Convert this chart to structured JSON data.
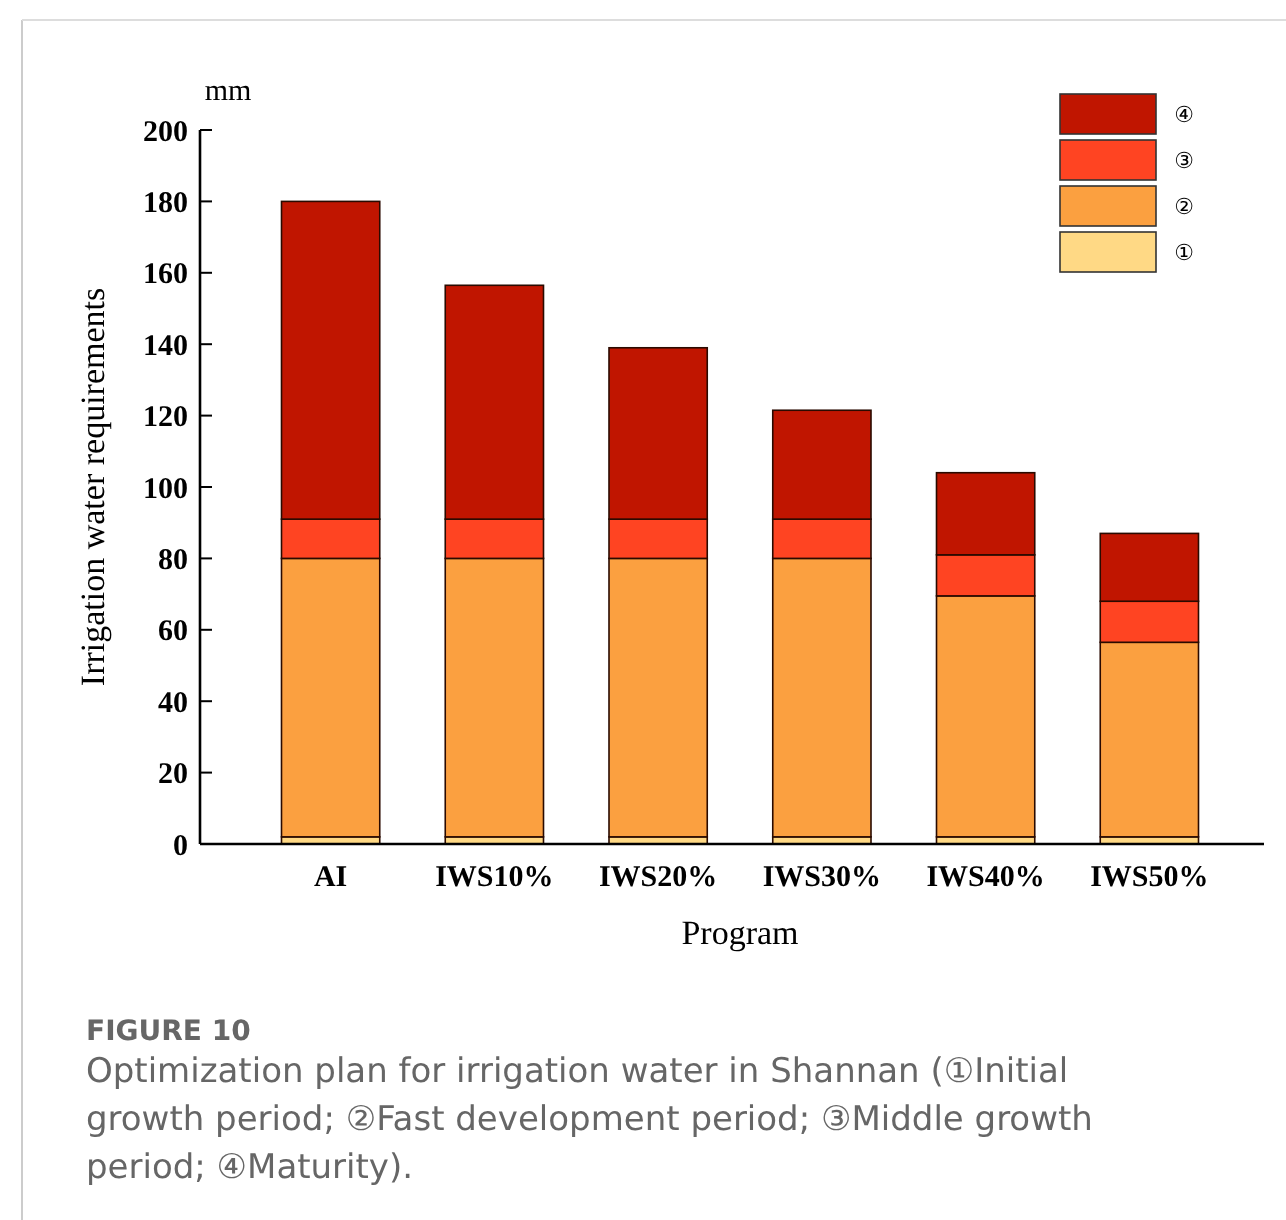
{
  "chart_data": {
    "type": "bar",
    "stacked": true,
    "title": "FIGURE 10",
    "subtitle": "Optimization plan for irrigation water in Shannan (①Initial growth period; ②Fast development period; ③Middle growth period; ④Maturity).",
    "xlabel": "Program",
    "ylabel": "Irrigation water requirements",
    "annotations": [
      "mm"
    ],
    "categories": [
      "AI",
      "IWS10%",
      "IWS20%",
      "IWS30%",
      "IWS40%",
      "IWS50%"
    ],
    "series": [
      {
        "name": "①",
        "color": "#ffd985",
        "values": [
          2,
          2,
          2,
          2,
          2,
          2
        ]
      },
      {
        "name": "②",
        "color": "#fba040",
        "values": [
          78,
          78,
          78,
          78,
          67.5,
          54.5
        ]
      },
      {
        "name": "③",
        "color": "#ff4422",
        "values": [
          11,
          11,
          11,
          11,
          11.5,
          11.5
        ]
      },
      {
        "name": "④",
        "color": "#c01500",
        "values": [
          89,
          65.5,
          48,
          30.5,
          23,
          19
        ]
      }
    ],
    "ylim": [
      0,
      200
    ],
    "yticks": [
      0,
      20,
      40,
      60,
      80,
      100,
      120,
      140,
      160,
      180,
      200
    ],
    "grid": false,
    "legend": "top right"
  }
}
